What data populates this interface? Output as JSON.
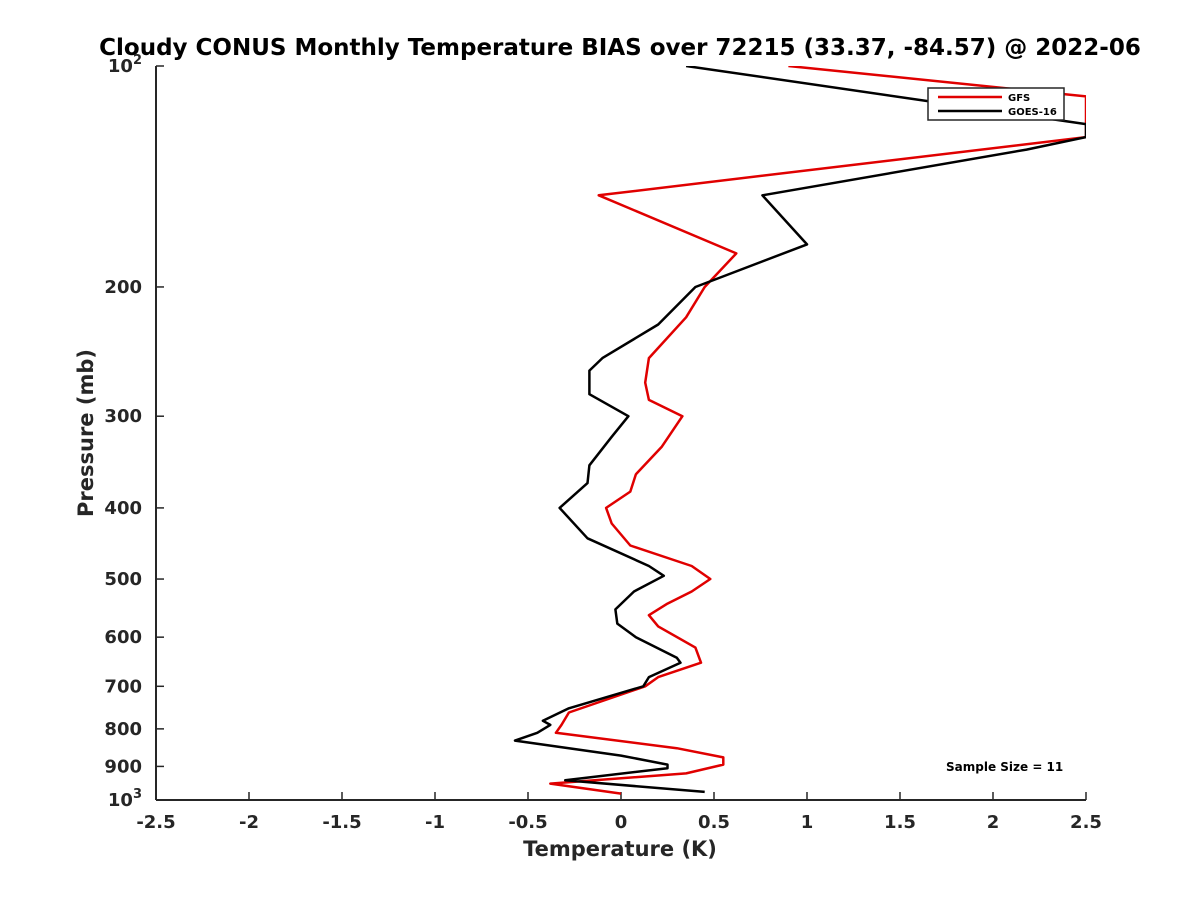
{
  "chart_data": {
    "type": "line",
    "title": "Cloudy CONUS Monthly Temperature BIAS over 72215 (33.37, -84.57) @ 2022-06",
    "xlabel": "Temperature (K)",
    "ylabel": "Pressure (mb)",
    "xlim": [
      -2.5,
      2.5
    ],
    "ylim": [
      100,
      1000
    ],
    "y_scale": "log",
    "y_reversed": true,
    "grid": false,
    "legend_position": "top-right",
    "x_ticks": [
      "-2.5",
      "-2",
      "-1.5",
      "-1",
      "-0.5",
      "0",
      "0.5",
      "1",
      "1.5",
      "2",
      "2.5"
    ],
    "x_tick_values": [
      -2.5,
      -2,
      -1.5,
      -1,
      -0.5,
      0,
      0.5,
      1,
      1.5,
      2,
      2.5
    ],
    "y_ticks": [
      {
        "value": 200,
        "label": "200"
      },
      {
        "value": 300,
        "label": "300"
      },
      {
        "value": 400,
        "label": "400"
      },
      {
        "value": 500,
        "label": "500"
      },
      {
        "value": 600,
        "label": "600"
      },
      {
        "value": 700,
        "label": "700"
      },
      {
        "value": 800,
        "label": "800"
      },
      {
        "value": 900,
        "label": "900"
      }
    ],
    "y_tick_top": {
      "value": 100,
      "base": "10",
      "exp": "2"
    },
    "y_tick_bottom": {
      "value": 1000,
      "base": "10",
      "exp": "3"
    },
    "annotation": "Sample Size = 11",
    "series": [
      {
        "name": "GFS",
        "color": "#e00000",
        "points": [
          [
            0.9,
            100
          ],
          [
            2.5,
            110
          ],
          [
            2.5,
            125
          ],
          [
            -0.12,
            150
          ],
          [
            0.62,
            180
          ],
          [
            0.45,
            200
          ],
          [
            0.35,
            220
          ],
          [
            0.15,
            250
          ],
          [
            0.13,
            270
          ],
          [
            0.15,
            285
          ],
          [
            0.33,
            300
          ],
          [
            0.22,
            330
          ],
          [
            0.08,
            360
          ],
          [
            0.05,
            380
          ],
          [
            -0.08,
            400
          ],
          [
            -0.05,
            420
          ],
          [
            0.05,
            450
          ],
          [
            0.38,
            480
          ],
          [
            0.48,
            500
          ],
          [
            0.38,
            520
          ],
          [
            0.25,
            540
          ],
          [
            0.15,
            560
          ],
          [
            0.2,
            580
          ],
          [
            0.4,
            620
          ],
          [
            0.43,
            650
          ],
          [
            0.2,
            680
          ],
          [
            0.13,
            700
          ],
          [
            -0.28,
            760
          ],
          [
            -0.32,
            790
          ],
          [
            -0.35,
            810
          ],
          [
            0.3,
            850
          ],
          [
            0.55,
            875
          ],
          [
            0.55,
            895
          ],
          [
            0.35,
            920
          ],
          [
            -0.38,
            950
          ],
          [
            0.0,
            980
          ]
        ]
      },
      {
        "name": "GOES-16",
        "color": "#000000",
        "points": [
          [
            0.35,
            100
          ],
          [
            2.5,
            120
          ],
          [
            2.5,
            125
          ],
          [
            2.18,
            130
          ],
          [
            0.76,
            150
          ],
          [
            1.0,
            175
          ],
          [
            0.4,
            200
          ],
          [
            0.2,
            225
          ],
          [
            -0.1,
            250
          ],
          [
            -0.17,
            260
          ],
          [
            -0.17,
            280
          ],
          [
            0.04,
            300
          ],
          [
            -0.05,
            320
          ],
          [
            -0.17,
            350
          ],
          [
            -0.18,
            370
          ],
          [
            -0.33,
            400
          ],
          [
            -0.18,
            440
          ],
          [
            0.15,
            480
          ],
          [
            0.23,
            495
          ],
          [
            0.07,
            520
          ],
          [
            -0.03,
            550
          ],
          [
            -0.02,
            575
          ],
          [
            0.08,
            600
          ],
          [
            0.3,
            640
          ],
          [
            0.32,
            650
          ],
          [
            0.15,
            680
          ],
          [
            0.12,
            700
          ],
          [
            -0.28,
            750
          ],
          [
            -0.42,
            780
          ],
          [
            -0.38,
            790
          ],
          [
            -0.45,
            810
          ],
          [
            -0.57,
            830
          ],
          [
            0.0,
            870
          ],
          [
            0.25,
            895
          ],
          [
            0.25,
            905
          ],
          [
            -0.3,
            940
          ],
          [
            0.45,
            975
          ]
        ]
      }
    ]
  }
}
